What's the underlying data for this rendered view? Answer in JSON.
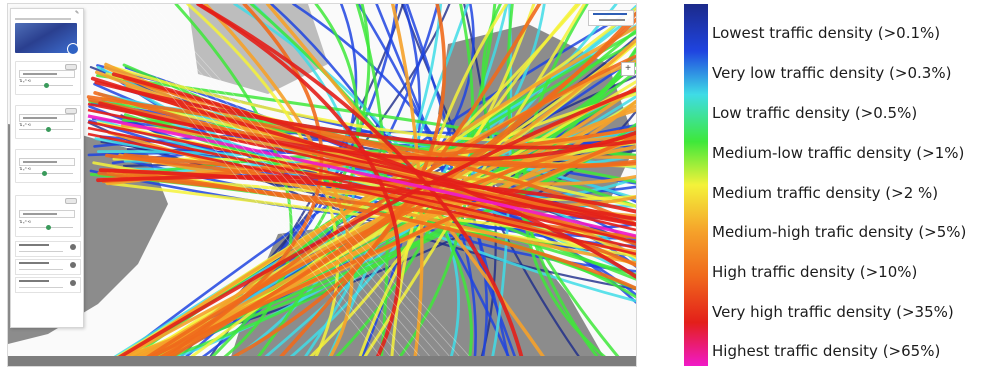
{
  "map": {
    "zoom_control_label": "+",
    "colors": {
      "land": "#8c8c8c",
      "sea": "#ffffff",
      "lowest": "#1c2a8a",
      "very_low": "#1f44e0",
      "low": "#3fdce6",
      "medium_low": "#3ee83a",
      "medium": "#f4f23a",
      "medium_high": "#f5a12a",
      "high": "#f06a1c",
      "very_high": "#e31f1a",
      "highest": "#f01ac8"
    }
  },
  "legend": {
    "items": [
      {
        "label": "Lowest traffic density (>0.1%)",
        "color": "#1c2a8a"
      },
      {
        "label": "Very low traffic density (>0.3%)",
        "color": "#1f44e0"
      },
      {
        "label": "Low traffic density (>0.5%)",
        "color": "#3fdce6"
      },
      {
        "label": "Medium-low traffic density (>1%)",
        "color": "#3ee83a"
      },
      {
        "label": "Medium traffic density (>2 %)",
        "color": "#f4f23a"
      },
      {
        "label": "Medium-high trafic density (>5%)",
        "color": "#f5a12a"
      },
      {
        "label": "High traffic density (>10%)",
        "color": "#f06a1c"
      },
      {
        "label": "Very high traffic density (>35%)",
        "color": "#e31f1a"
      },
      {
        "label": "Highest traffic density (>65%)",
        "color": "#f01ac8"
      }
    ]
  }
}
